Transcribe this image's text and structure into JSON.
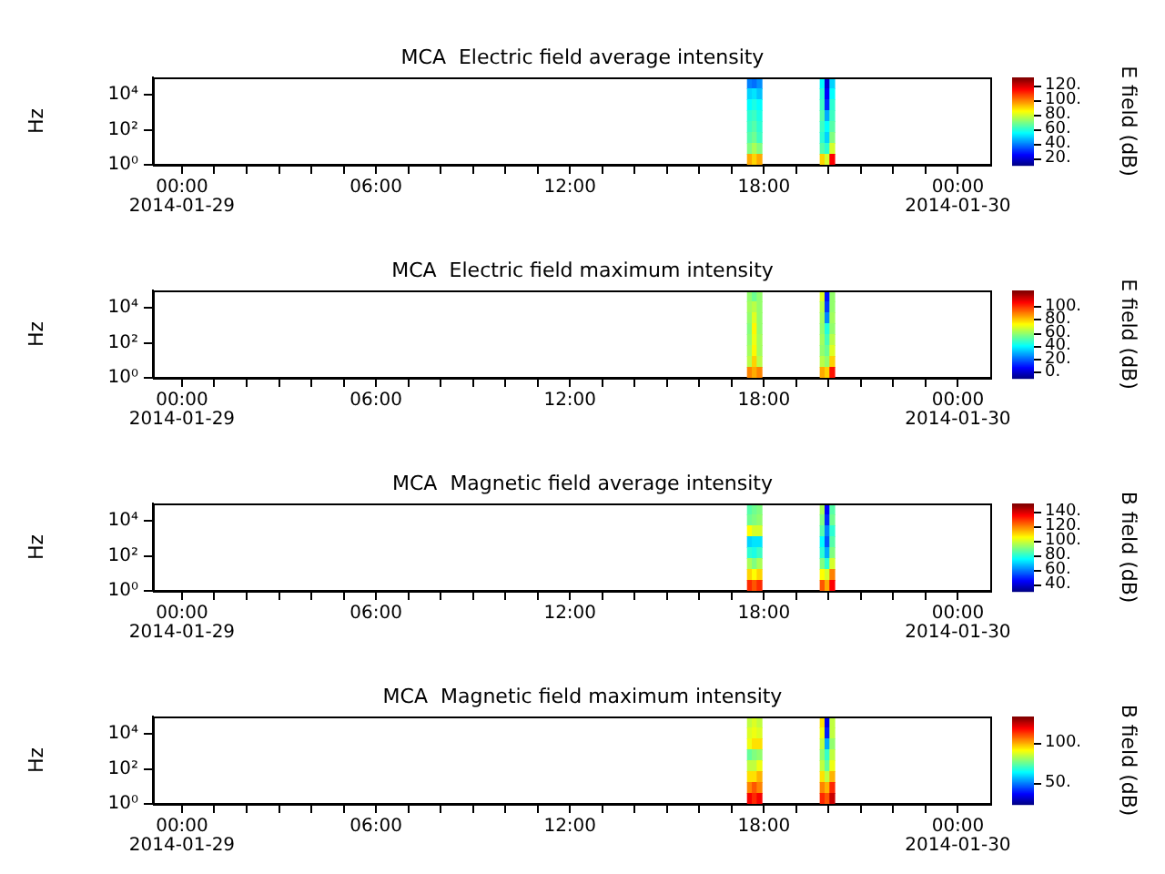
{
  "chart_data": [
    {
      "type": "heatmap",
      "title": "MCA  Electric field average intensity",
      "ylabel": "Hz",
      "clabel": "E field (dB)",
      "log": "y",
      "grid": false,
      "xlim": [
        "2014-01-28T23:06",
        "2014-01-30T01:00"
      ],
      "xticks": [
        {
          "value": "2014-01-29T00:00",
          "label": "00:00\n2014-01-29"
        },
        {
          "value": "2014-01-29T01:00",
          "label": null
        },
        {
          "value": "2014-01-29T02:00",
          "label": null
        },
        {
          "value": "2014-01-29T03:00",
          "label": null
        },
        {
          "value": "2014-01-29T04:00",
          "label": null
        },
        {
          "value": "2014-01-29T05:00",
          "label": null
        },
        {
          "value": "2014-01-29T06:00",
          "label": "06:00"
        },
        {
          "value": "2014-01-29T07:00",
          "label": null
        },
        {
          "value": "2014-01-29T08:00",
          "label": null
        },
        {
          "value": "2014-01-29T09:00",
          "label": null
        },
        {
          "value": "2014-01-29T10:00",
          "label": null
        },
        {
          "value": "2014-01-29T11:00",
          "label": null
        },
        {
          "value": "2014-01-29T12:00",
          "label": "12:00"
        },
        {
          "value": "2014-01-29T13:00",
          "label": null
        },
        {
          "value": "2014-01-29T14:00",
          "label": null
        },
        {
          "value": "2014-01-29T15:00",
          "label": null
        },
        {
          "value": "2014-01-29T16:00",
          "label": null
        },
        {
          "value": "2014-01-29T17:00",
          "label": null
        },
        {
          "value": "2014-01-29T18:00",
          "label": "18:00"
        },
        {
          "value": "2014-01-29T19:00",
          "label": null
        },
        {
          "value": "2014-01-29T20:00",
          "label": null
        },
        {
          "value": "2014-01-29T21:00",
          "label": null
        },
        {
          "value": "2014-01-29T22:00",
          "label": null
        },
        {
          "value": "2014-01-29T23:00",
          "label": null
        },
        {
          "value": "2014-01-30T00:00",
          "label": "00:00\n2014-01-30"
        }
      ],
      "ylim": [
        1,
        100000
      ],
      "yticks": [
        {
          "value": 1,
          "label": "10⁰"
        },
        {
          "value": 100,
          "label": "10²"
        },
        {
          "value": 10000,
          "label": "10⁴"
        }
      ],
      "clim": [
        10,
        130
      ],
      "cticks": [
        {
          "value": 20,
          "label": "20."
        },
        {
          "value": 40,
          "label": "40."
        },
        {
          "value": 60,
          "label": "60."
        },
        {
          "value": 80,
          "label": "80."
        },
        {
          "value": 100,
          "label": "100."
        },
        {
          "value": 120,
          "label": "120."
        }
      ],
      "x": [
        "2014-01-29T17:33",
        "2014-01-29T17:42",
        "2014-01-29T17:51",
        "2014-01-29T18:00",
        "2014-01-29T18:09",
        "2014-01-29T18:18",
        "2014-01-29T18:27",
        "2014-01-29T18:36",
        "2014-01-29T18:45",
        "2014-01-29T18:54",
        "2014-01-29T19:03",
        "2014-01-29T19:12",
        "2014-01-29T19:21",
        "2014-01-29T19:30",
        "2014-01-29T19:39",
        "2014-01-29T19:48",
        "2014-01-29T19:57",
        "2014-01-29T20:06"
      ],
      "cells": [
        [
          40,
          38,
          42,
          null,
          null,
          null,
          null,
          null,
          null,
          null,
          null,
          null,
          null,
          null,
          null,
          55,
          20,
          50
        ],
        [
          50,
          52,
          48,
          null,
          null,
          null,
          null,
          null,
          null,
          null,
          null,
          null,
          null,
          null,
          null,
          60,
          25,
          55
        ],
        [
          55,
          58,
          55,
          null,
          null,
          null,
          null,
          null,
          null,
          null,
          null,
          null,
          null,
          null,
          null,
          62,
          30,
          60
        ],
        [
          60,
          62,
          58,
          null,
          null,
          null,
          null,
          null,
          null,
          null,
          null,
          null,
          null,
          null,
          null,
          65,
          45,
          62
        ],
        [
          62,
          65,
          60,
          null,
          null,
          null,
          null,
          null,
          null,
          null,
          null,
          null,
          null,
          null,
          null,
          62,
          55,
          65
        ],
        [
          65,
          68,
          62,
          null,
          null,
          null,
          null,
          null,
          null,
          null,
          null,
          null,
          null,
          null,
          null,
          60,
          50,
          70
        ],
        [
          70,
          75,
          70,
          null,
          null,
          null,
          null,
          null,
          null,
          null,
          null,
          null,
          null,
          null,
          null,
          65,
          60,
          80
        ],
        [
          95,
          90,
          95,
          null,
          null,
          null,
          null,
          null,
          null,
          null,
          null,
          null,
          null,
          null,
          null,
          90,
          80,
          115
        ]
      ]
    },
    {
      "type": "heatmap",
      "title": "MCA  Electric field maximum intensity",
      "ylabel": "Hz",
      "clabel": "E field (dB)",
      "log": "y",
      "grid": false,
      "xlim": [
        "2014-01-28T23:06",
        "2014-01-30T01:00"
      ],
      "xticks": [
        {
          "value": "2014-01-29T00:00",
          "label": "00:00\n2014-01-29"
        },
        {
          "value": "2014-01-29T01:00",
          "label": null
        },
        {
          "value": "2014-01-29T02:00",
          "label": null
        },
        {
          "value": "2014-01-29T03:00",
          "label": null
        },
        {
          "value": "2014-01-29T04:00",
          "label": null
        },
        {
          "value": "2014-01-29T05:00",
          "label": null
        },
        {
          "value": "2014-01-29T06:00",
          "label": "06:00"
        },
        {
          "value": "2014-01-29T07:00",
          "label": null
        },
        {
          "value": "2014-01-29T08:00",
          "label": null
        },
        {
          "value": "2014-01-29T09:00",
          "label": null
        },
        {
          "value": "2014-01-29T10:00",
          "label": null
        },
        {
          "value": "2014-01-29T11:00",
          "label": null
        },
        {
          "value": "2014-01-29T12:00",
          "label": "12:00"
        },
        {
          "value": "2014-01-29T13:00",
          "label": null
        },
        {
          "value": "2014-01-29T14:00",
          "label": null
        },
        {
          "value": "2014-01-29T15:00",
          "label": null
        },
        {
          "value": "2014-01-29T16:00",
          "label": null
        },
        {
          "value": "2014-01-29T17:00",
          "label": null
        },
        {
          "value": "2014-01-29T18:00",
          "label": "18:00"
        },
        {
          "value": "2014-01-29T19:00",
          "label": null
        },
        {
          "value": "2014-01-29T20:00",
          "label": null
        },
        {
          "value": "2014-01-29T21:00",
          "label": null
        },
        {
          "value": "2014-01-29T22:00",
          "label": null
        },
        {
          "value": "2014-01-29T23:00",
          "label": null
        },
        {
          "value": "2014-01-30T00:00",
          "label": "00:00\n2014-01-30"
        }
      ],
      "ylim": [
        1,
        100000
      ],
      "yticks": [
        {
          "value": 1,
          "label": "10⁰"
        },
        {
          "value": 100,
          "label": "10²"
        },
        {
          "value": 10000,
          "label": "10⁴"
        }
      ],
      "clim": [
        -9,
        124
      ],
      "cticks": [
        {
          "value": 0,
          "label": "0."
        },
        {
          "value": 20,
          "label": "20."
        },
        {
          "value": 40,
          "label": "40."
        },
        {
          "value": 60,
          "label": "60."
        },
        {
          "value": 80,
          "label": "80."
        },
        {
          "value": 100,
          "label": "100."
        }
      ],
      "x": [
        "2014-01-29T17:33",
        "2014-01-29T17:42",
        "2014-01-29T17:51",
        "2014-01-29T18:00",
        "2014-01-29T18:09",
        "2014-01-29T18:18",
        "2014-01-29T18:27",
        "2014-01-29T18:36",
        "2014-01-29T18:45",
        "2014-01-29T18:54",
        "2014-01-29T19:03",
        "2014-01-29T19:12",
        "2014-01-29T19:21",
        "2014-01-29T19:30",
        "2014-01-29T19:39",
        "2014-01-29T19:48",
        "2014-01-29T19:57",
        "2014-01-29T20:06"
      ],
      "cells": [
        [
          60,
          55,
          60,
          null,
          null,
          null,
          null,
          null,
          null,
          null,
          null,
          null,
          null,
          null,
          null,
          70,
          10,
          60
        ],
        [
          62,
          65,
          60,
          null,
          null,
          null,
          null,
          null,
          null,
          null,
          null,
          null,
          null,
          null,
          null,
          65,
          15,
          60
        ],
        [
          60,
          70,
          60,
          null,
          null,
          null,
          null,
          null,
          null,
          null,
          null,
          null,
          null,
          null,
          null,
          62,
          25,
          62
        ],
        [
          58,
          75,
          60,
          null,
          null,
          null,
          null,
          null,
          null,
          null,
          null,
          null,
          null,
          null,
          null,
          60,
          45,
          60
        ],
        [
          60,
          72,
          62,
          null,
          null,
          null,
          null,
          null,
          null,
          null,
          null,
          null,
          null,
          null,
          null,
          62,
          50,
          65
        ],
        [
          62,
          75,
          62,
          null,
          null,
          null,
          null,
          null,
          null,
          null,
          null,
          null,
          null,
          null,
          null,
          60,
          55,
          70
        ],
        [
          65,
          80,
          65,
          null,
          null,
          null,
          null,
          null,
          null,
          null,
          null,
          null,
          null,
          null,
          null,
          65,
          60,
          80
        ],
        [
          90,
          85,
          90,
          null,
          null,
          null,
          null,
          null,
          null,
          null,
          null,
          null,
          null,
          null,
          null,
          85,
          80,
          105
        ]
      ]
    },
    {
      "type": "heatmap",
      "title": "MCA  Magnetic field average intensity",
      "ylabel": "Hz",
      "clabel": "B field (dB)",
      "log": "y",
      "grid": false,
      "xlim": [
        "2014-01-28T23:06",
        "2014-01-30T01:00"
      ],
      "xticks": [
        {
          "value": "2014-01-29T00:00",
          "label": "00:00\n2014-01-29"
        },
        {
          "value": "2014-01-29T01:00",
          "label": null
        },
        {
          "value": "2014-01-29T02:00",
          "label": null
        },
        {
          "value": "2014-01-29T03:00",
          "label": null
        },
        {
          "value": "2014-01-29T04:00",
          "label": null
        },
        {
          "value": "2014-01-29T05:00",
          "label": null
        },
        {
          "value": "2014-01-29T06:00",
          "label": "06:00"
        },
        {
          "value": "2014-01-29T07:00",
          "label": null
        },
        {
          "value": "2014-01-29T08:00",
          "label": null
        },
        {
          "value": "2014-01-29T09:00",
          "label": null
        },
        {
          "value": "2014-01-29T10:00",
          "label": null
        },
        {
          "value": "2014-01-29T11:00",
          "label": null
        },
        {
          "value": "2014-01-29T12:00",
          "label": "12:00"
        },
        {
          "value": "2014-01-29T13:00",
          "label": null
        },
        {
          "value": "2014-01-29T14:00",
          "label": null
        },
        {
          "value": "2014-01-29T15:00",
          "label": null
        },
        {
          "value": "2014-01-29T16:00",
          "label": null
        },
        {
          "value": "2014-01-29T17:00",
          "label": null
        },
        {
          "value": "2014-01-29T18:00",
          "label": "18:00"
        },
        {
          "value": "2014-01-29T19:00",
          "label": null
        },
        {
          "value": "2014-01-29T20:00",
          "label": null
        },
        {
          "value": "2014-01-29T21:00",
          "label": null
        },
        {
          "value": "2014-01-29T22:00",
          "label": null
        },
        {
          "value": "2014-01-29T23:00",
          "label": null
        },
        {
          "value": "2014-01-30T00:00",
          "label": "00:00\n2014-01-30"
        }
      ],
      "ylim": [
        1,
        100000
      ],
      "yticks": [
        {
          "value": 1,
          "label": "10⁰"
        },
        {
          "value": 100,
          "label": "10²"
        },
        {
          "value": 10000,
          "label": "10⁴"
        }
      ],
      "clim": [
        30,
        150
      ],
      "cticks": [
        {
          "value": 40,
          "label": "40."
        },
        {
          "value": 60,
          "label": "60."
        },
        {
          "value": 80,
          "label": "80."
        },
        {
          "value": 100,
          "label": "100."
        },
        {
          "value": 120,
          "label": "120."
        },
        {
          "value": 140,
          "label": "140."
        }
      ],
      "x": [
        "2014-01-29T17:33",
        "2014-01-29T17:42",
        "2014-01-29T17:51",
        "2014-01-29T18:00",
        "2014-01-29T18:09",
        "2014-01-29T18:18",
        "2014-01-29T18:27",
        "2014-01-29T18:36",
        "2014-01-29T18:45",
        "2014-01-29T18:54",
        "2014-01-29T19:03",
        "2014-01-29T19:12",
        "2014-01-29T19:21",
        "2014-01-29T19:30",
        "2014-01-29T19:39",
        "2014-01-29T19:48",
        "2014-01-29T19:57",
        "2014-01-29T20:06"
      ],
      "cells": [
        [
          85,
          88,
          90,
          null,
          null,
          null,
          null,
          null,
          null,
          null,
          null,
          null,
          null,
          null,
          null,
          95,
          45,
          85
        ],
        [
          88,
          90,
          92,
          null,
          null,
          null,
          null,
          null,
          null,
          null,
          null,
          null,
          null,
          null,
          null,
          90,
          50,
          88
        ],
        [
          105,
          100,
          100,
          null,
          null,
          null,
          null,
          null,
          null,
          null,
          null,
          null,
          null,
          null,
          null,
          85,
          60,
          80
        ],
        [
          70,
          72,
          72,
          null,
          null,
          null,
          null,
          null,
          null,
          null,
          null,
          null,
          null,
          null,
          null,
          75,
          55,
          85
        ],
        [
          80,
          78,
          82,
          null,
          null,
          null,
          null,
          null,
          null,
          null,
          null,
          null,
          null,
          null,
          null,
          80,
          65,
          90
        ],
        [
          95,
          90,
          95,
          null,
          null,
          null,
          null,
          null,
          null,
          null,
          null,
          null,
          null,
          null,
          null,
          90,
          80,
          100
        ],
        [
          110,
          105,
          110,
          null,
          null,
          null,
          null,
          null,
          null,
          null,
          null,
          null,
          null,
          null,
          null,
          105,
          100,
          120
        ],
        [
          130,
          125,
          130,
          null,
          null,
          null,
          null,
          null,
          null,
          null,
          null,
          null,
          null,
          null,
          null,
          125,
          115,
          135
        ]
      ]
    },
    {
      "type": "heatmap",
      "title": "MCA  Magnetic field maximum intensity",
      "ylabel": "Hz",
      "clabel": "B field (dB)",
      "log": "y",
      "grid": false,
      "xlim": [
        "2014-01-28T23:06",
        "2014-01-30T01:00"
      ],
      "xticks": [
        {
          "value": "2014-01-29T00:00",
          "label": "00:00\n2014-01-29"
        },
        {
          "value": "2014-01-29T01:00",
          "label": null
        },
        {
          "value": "2014-01-29T02:00",
          "label": null
        },
        {
          "value": "2014-01-29T03:00",
          "label": null
        },
        {
          "value": "2014-01-29T04:00",
          "label": null
        },
        {
          "value": "2014-01-29T05:00",
          "label": null
        },
        {
          "value": "2014-01-29T06:00",
          "label": "06:00"
        },
        {
          "value": "2014-01-29T07:00",
          "label": null
        },
        {
          "value": "2014-01-29T08:00",
          "label": null
        },
        {
          "value": "2014-01-29T09:00",
          "label": null
        },
        {
          "value": "2014-01-29T10:00",
          "label": null
        },
        {
          "value": "2014-01-29T11:00",
          "label": null
        },
        {
          "value": "2014-01-29T12:00",
          "label": "12:00"
        },
        {
          "value": "2014-01-29T13:00",
          "label": null
        },
        {
          "value": "2014-01-29T14:00",
          "label": null
        },
        {
          "value": "2014-01-29T15:00",
          "label": null
        },
        {
          "value": "2014-01-29T16:00",
          "label": null
        },
        {
          "value": "2014-01-29T17:00",
          "label": null
        },
        {
          "value": "2014-01-29T18:00",
          "label": "18:00"
        },
        {
          "value": "2014-01-29T19:00",
          "label": null
        },
        {
          "value": "2014-01-29T20:00",
          "label": null
        },
        {
          "value": "2014-01-29T21:00",
          "label": null
        },
        {
          "value": "2014-01-29T22:00",
          "label": null
        },
        {
          "value": "2014-01-29T23:00",
          "label": null
        },
        {
          "value": "2014-01-30T00:00",
          "label": "00:00\n2014-01-30"
        }
      ],
      "ylim": [
        1,
        100000
      ],
      "yticks": [
        {
          "value": 1,
          "label": "10⁰"
        },
        {
          "value": 100,
          "label": "10²"
        },
        {
          "value": 10000,
          "label": "10⁴"
        }
      ],
      "clim": [
        23,
        133
      ],
      "cticks": [
        {
          "value": 50,
          "label": "50."
        },
        {
          "value": 100,
          "label": "100."
        }
      ],
      "x": [
        "2014-01-29T17:33",
        "2014-01-29T17:42",
        "2014-01-29T17:51",
        "2014-01-29T18:00",
        "2014-01-29T18:09",
        "2014-01-29T18:18",
        "2014-01-29T18:27",
        "2014-01-29T18:36",
        "2014-01-29T18:45",
        "2014-01-29T18:54",
        "2014-01-29T19:03",
        "2014-01-29T19:12",
        "2014-01-29T19:21",
        "2014-01-29T19:30",
        "2014-01-29T19:39",
        "2014-01-29T19:48",
        "2014-01-29T19:57",
        "2014-01-29T20:06"
      ],
      "cells": [
        [
          85,
          88,
          85,
          null,
          null,
          null,
          null,
          null,
          null,
          null,
          null,
          null,
          null,
          null,
          null,
          95,
          35,
          85
        ],
        [
          88,
          90,
          88,
          null,
          null,
          null,
          null,
          null,
          null,
          null,
          null,
          null,
          null,
          null,
          null,
          90,
          40,
          85
        ],
        [
          90,
          95,
          95,
          null,
          null,
          null,
          null,
          null,
          null,
          null,
          null,
          null,
          null,
          null,
          null,
          85,
          55,
          80
        ],
        [
          75,
          78,
          80,
          null,
          null,
          null,
          null,
          null,
          null,
          null,
          null,
          null,
          null,
          null,
          null,
          80,
          70,
          85
        ],
        [
          85,
          85,
          90,
          null,
          null,
          null,
          null,
          null,
          null,
          null,
          null,
          null,
          null,
          null,
          null,
          85,
          75,
          90
        ],
        [
          95,
          95,
          100,
          null,
          null,
          null,
          null,
          null,
          null,
          null,
          null,
          null,
          null,
          null,
          null,
          95,
          85,
          100
        ],
        [
          105,
          110,
          105,
          null,
          null,
          null,
          null,
          null,
          null,
          null,
          null,
          null,
          null,
          null,
          null,
          105,
          100,
          115
        ],
        [
          120,
          115,
          120,
          null,
          null,
          null,
          null,
          null,
          null,
          null,
          null,
          null,
          null,
          null,
          null,
          115,
          110,
          125
        ]
      ]
    }
  ]
}
